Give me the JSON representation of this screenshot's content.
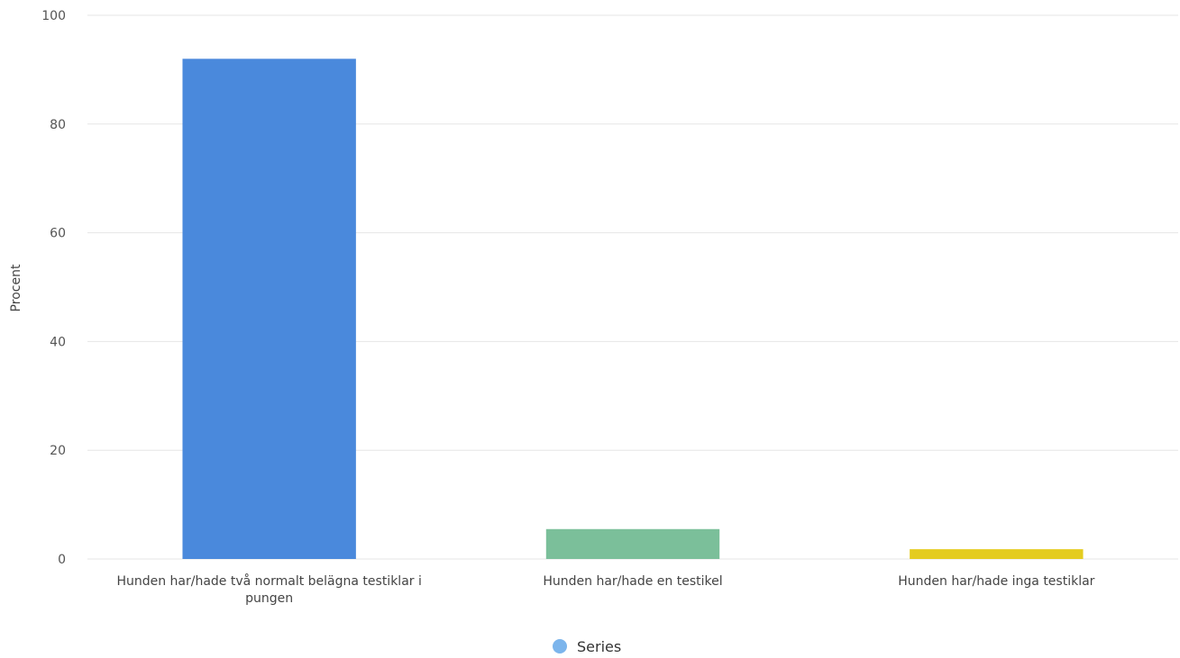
{
  "chart_data": {
    "type": "bar",
    "categories": [
      "Hunden har/hade två normalt belägna testiklar i pungen",
      "Hunden har/hade en testikel",
      "Hunden har/hade inga testiklar"
    ],
    "category_lines": [
      [
        "Hunden har/hade två normalt belägna testiklar i",
        "pungen"
      ],
      [
        "Hunden har/hade en testikel"
      ],
      [
        "Hunden har/hade inga testiklar"
      ]
    ],
    "series": [
      {
        "name": "Series",
        "values": [
          92,
          5.5,
          1.8
        ]
      }
    ],
    "bar_colors": [
      "#4a89dc",
      "#7bbf9a",
      "#e4cc1f"
    ],
    "legend_color": "#7cb5ec",
    "xlabel": "",
    "ylabel": "Procent",
    "ylim": [
      0,
      100
    ],
    "yticks": [
      0,
      20,
      40,
      60,
      80,
      100
    ],
    "grid": true,
    "legend": "bottom-center"
  }
}
